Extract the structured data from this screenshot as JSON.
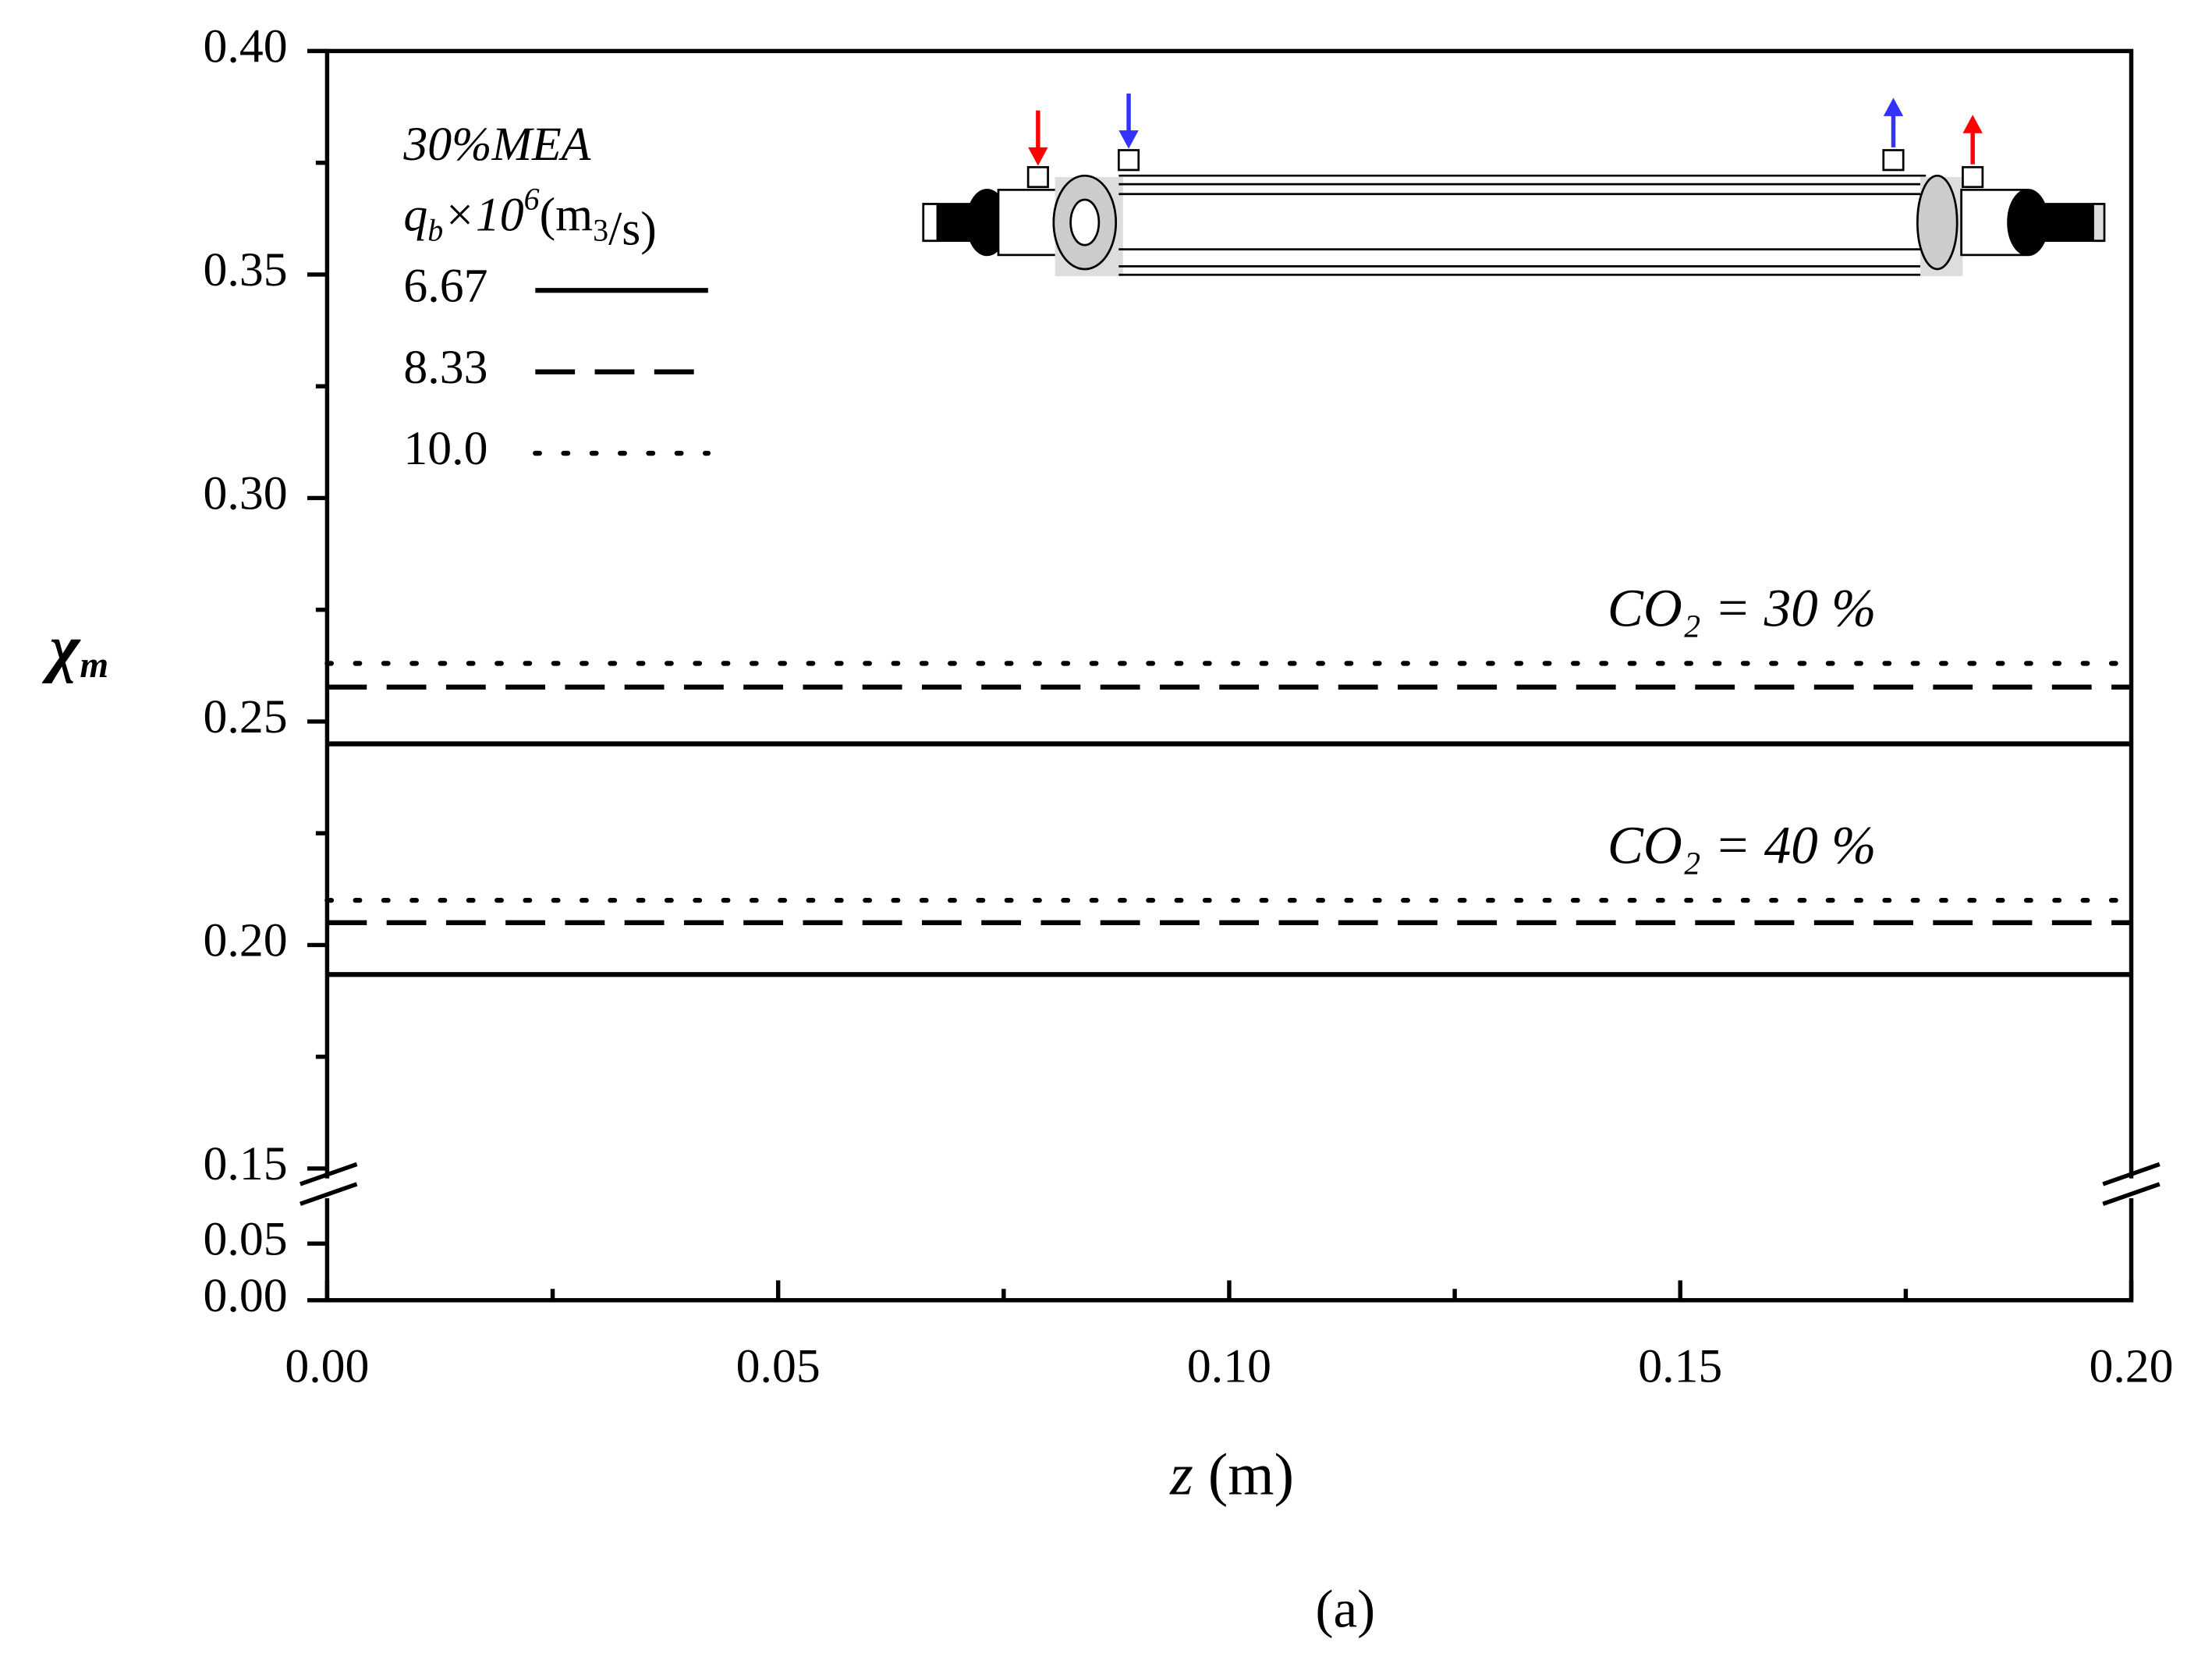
{
  "chart_data": {
    "type": "line",
    "x": [
      0,
      0.2
    ],
    "xlim": [
      0,
      0.2
    ],
    "xticks": [
      {
        "value": 0,
        "label": "0.00"
      },
      {
        "value": 0.05,
        "label": "0.05"
      },
      {
        "value": 0.1,
        "label": "0.10"
      },
      {
        "value": 0.15,
        "label": "0.15"
      },
      {
        "value": 0.2,
        "label": "0.20"
      }
    ],
    "xminorticks": [
      0.025,
      0.075,
      0.125,
      0.175
    ],
    "ylim": [
      0.15,
      0.4
    ],
    "yticks": [
      {
        "value": 0.15,
        "label": "0.15"
      },
      {
        "value": 0.2,
        "label": "0.20"
      },
      {
        "value": 0.25,
        "label": "0.25"
      },
      {
        "value": 0.3,
        "label": "0.30"
      },
      {
        "value": 0.35,
        "label": "0.35"
      },
      {
        "value": 0.4,
        "label": "0.40"
      }
    ],
    "yminorticks": [
      0.175,
      0.225,
      0.275,
      0.325,
      0.375
    ],
    "ylim_lower": [
      0,
      0.05
    ],
    "yticks_lower": [
      {
        "value": 0,
        "label": "0.00"
      },
      {
        "value": 0.05,
        "label": "0.05"
      }
    ],
    "x_label": [
      "z",
      " (m)"
    ],
    "y_label": [
      "χ",
      "m"
    ],
    "caption": "(a)",
    "legend_title": [
      "30%MEA",
      [
        "q",
        "b",
        "×10",
        "6",
        "(m",
        "3",
        "/s)"
      ]
    ],
    "legend": [
      {
        "name": "6.67",
        "dash": "solid",
        "color": "#000000"
      },
      {
        "name": "8.33",
        "dash": "dashed",
        "color": "#000000"
      },
      {
        "name": "10.0",
        "dash": "dotted",
        "color": "#000000"
      }
    ],
    "cases": [
      {
        "annotation": "CO₂ = 30 %",
        "series": [
          {
            "values": [
              0.245,
              0.245
            ]
          },
          {
            "values": [
              0.2577,
              0.2577
            ]
          },
          {
            "values": [
              0.263,
              0.263
            ]
          }
        ]
      },
      {
        "annotation": "CO₂ = 40 %",
        "series": [
          {
            "values": [
              0.1934,
              0.1934
            ]
          },
          {
            "values": [
              0.205,
              0.205
            ]
          },
          {
            "values": [
              0.21,
              0.21
            ]
          }
        ]
      }
    ]
  }
}
